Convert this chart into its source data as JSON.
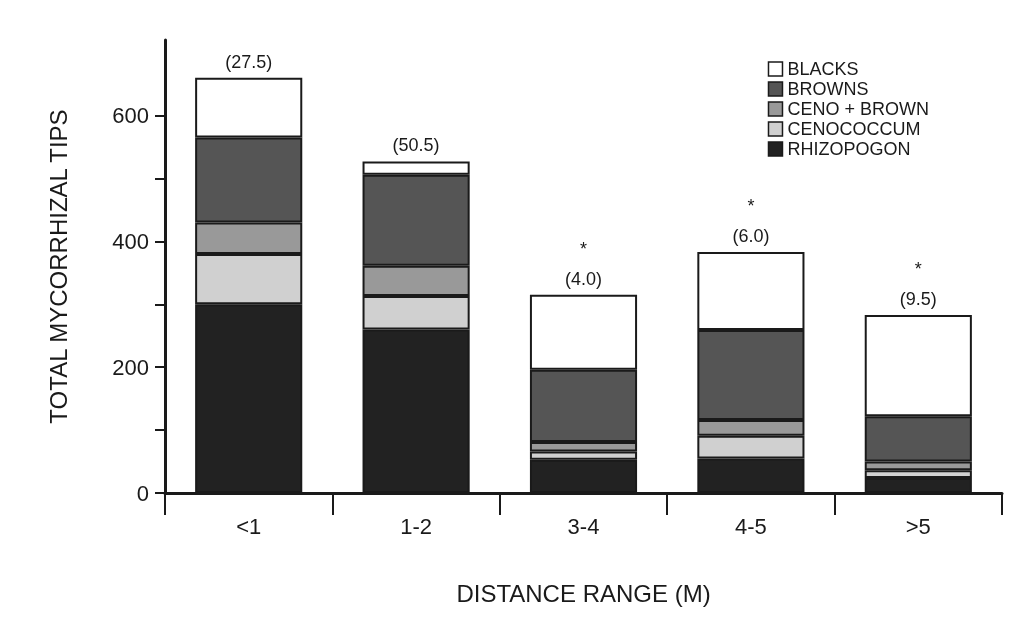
{
  "chart_data": {
    "type": "bar",
    "stacked": true,
    "xlabel": "DISTANCE RANGE (M)",
    "ylabel": "TOTAL MYCORRHIZAL TIPS",
    "categories": [
      "<1",
      "1-2",
      "3-4",
      "4-5",
      ">5"
    ],
    "series": [
      {
        "name": "RHIZOPOGON",
        "color": "#222222",
        "values": [
          300,
          260,
          53,
          55,
          24
        ]
      },
      {
        "name": "CENOCOCCUM",
        "color": "#d0d0d0",
        "values": [
          80,
          53,
          13,
          36,
          12
        ]
      },
      {
        "name": "CENO + BROWN",
        "color": "#999999",
        "values": [
          50,
          48,
          15,
          25,
          14
        ]
      },
      {
        "name": "BROWNS",
        "color": "#555555",
        "values": [
          135,
          145,
          115,
          143,
          72
        ]
      },
      {
        "name": "BLACKS",
        "color": "#ffffff",
        "values": [
          95,
          21,
          119,
          124,
          161
        ]
      }
    ],
    "ylim": [
      0,
      720
    ],
    "yticks": [
      0,
      {
        "value": 100,
        "label": null
      },
      200,
      {
        "value": 300,
        "label": null
      },
      400,
      {
        "value": 500,
        "label": null
      },
      600
    ],
    "grid": false,
    "legend": "top right",
    "annotations": [
      {
        "text": "(27.5)",
        "x": "<1",
        "y": 660
      },
      {
        "text": "(50.5)",
        "x": "1-2",
        "y": 527
      },
      {
        "text": "*",
        "x": "3-4",
        "y": 315
      },
      {
        "text": "(4.0)",
        "x": "3-4",
        "y": 315
      },
      {
        "text": "*",
        "x": "4-5",
        "y": 383
      },
      {
        "text": "(6.0)",
        "x": "4-5",
        "y": 383
      },
      {
        "text": "*",
        "x": ">5",
        "y": 283
      },
      {
        "text": "(9.5)",
        "x": ">5",
        "y": 283
      }
    ]
  }
}
